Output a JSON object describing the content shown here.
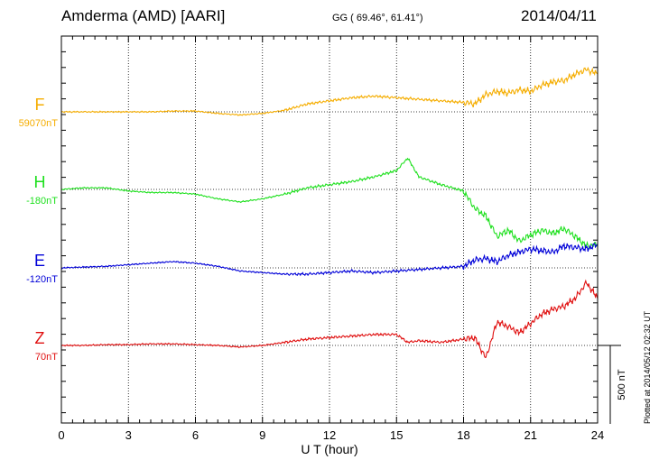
{
  "header": {
    "station": "Amderma (AMD)  [AARI]",
    "coords": "GG ( 69.46°,  61.41°)",
    "date": "2014/04/11"
  },
  "plotted_note": "Plotted at 2014/05/12 02:32 UT",
  "colors": {
    "F": "#f5ad00",
    "H": "#1ee01e",
    "E": "#0000d8",
    "Z": "#e01010"
  },
  "chart_data": {
    "type": "line",
    "xlabel": "U T (hour)",
    "xlim": [
      0,
      24
    ],
    "x_ticks": [
      "0",
      "3",
      "6",
      "9",
      "12",
      "15",
      "18",
      "21",
      "24"
    ],
    "scale_bar": {
      "label": "500 nT",
      "value_nT": 500
    },
    "series": [
      {
        "name": "F",
        "baseline_label": "59070nT",
        "x": [
          0,
          1,
          2,
          3,
          4,
          5,
          6,
          7,
          8,
          9,
          10,
          11,
          12,
          13,
          14,
          15,
          16,
          17,
          18,
          18.5,
          19,
          19.5,
          20,
          20.5,
          21,
          21.5,
          22,
          22.5,
          23,
          23.5,
          24
        ],
        "y": [
          0,
          0,
          0,
          0,
          0,
          5,
          5,
          -10,
          -20,
          -10,
          10,
          50,
          70,
          90,
          100,
          90,
          80,
          70,
          60,
          50,
          110,
          130,
          120,
          140,
          130,
          170,
          190,
          200,
          240,
          270,
          240
        ]
      },
      {
        "name": "H",
        "baseline_label": "-180nT",
        "x": [
          0,
          1,
          2,
          3,
          4,
          5,
          6,
          7,
          8,
          9,
          10,
          11,
          12,
          13,
          14,
          15,
          15.5,
          16,
          17,
          18,
          18.5,
          19,
          19.5,
          20,
          20.5,
          21,
          21.5,
          22,
          22.5,
          23,
          23.5,
          24
        ],
        "y": [
          0,
          10,
          10,
          -10,
          -20,
          -20,
          -30,
          -60,
          -80,
          -60,
          -30,
          10,
          30,
          50,
          80,
          120,
          200,
          80,
          30,
          -10,
          -120,
          -170,
          -300,
          -260,
          -330,
          -290,
          -260,
          -280,
          -250,
          -300,
          -360,
          -350
        ]
      },
      {
        "name": "E",
        "baseline_label": "-120nT",
        "x": [
          0,
          1,
          2,
          3,
          4,
          5,
          6,
          7,
          8,
          9,
          10,
          11,
          12,
          13,
          14,
          15,
          16,
          17,
          18,
          18.5,
          19,
          19.5,
          20,
          20.5,
          21,
          21.5,
          22,
          22.5,
          23,
          23.5,
          24
        ],
        "y": [
          0,
          5,
          10,
          20,
          30,
          40,
          30,
          10,
          -20,
          -30,
          -40,
          -40,
          -30,
          -20,
          -30,
          -20,
          -10,
          0,
          10,
          50,
          60,
          40,
          80,
          100,
          120,
          110,
          100,
          140,
          130,
          120,
          150
        ]
      },
      {
        "name": "Z",
        "baseline_label": "70nT",
        "x": [
          0,
          1,
          2,
          3,
          4,
          5,
          6,
          7,
          8,
          9,
          10,
          11,
          12,
          13,
          14,
          15,
          15.5,
          16,
          17,
          18,
          18.5,
          19,
          19.5,
          20,
          20.5,
          21,
          21.5,
          22,
          22.5,
          23,
          23.5,
          24
        ],
        "y": [
          0,
          0,
          5,
          5,
          10,
          10,
          5,
          0,
          -10,
          0,
          20,
          40,
          50,
          60,
          70,
          70,
          20,
          30,
          20,
          40,
          50,
          -80,
          150,
          120,
          80,
          140,
          200,
          230,
          250,
          300,
          400,
          300
        ]
      }
    ]
  }
}
